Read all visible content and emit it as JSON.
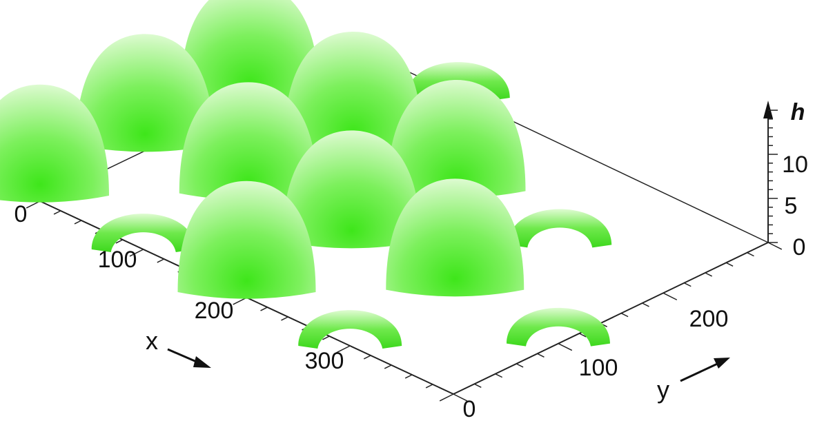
{
  "chart_data": {
    "type": "surface",
    "xlabel": "x",
    "ylabel": "y",
    "zlabel": "h",
    "x_ticks": [
      "0",
      "100",
      "200",
      "300"
    ],
    "y_ticks": [
      "0",
      "100",
      "200"
    ],
    "z_ticks": [
      "0",
      "5",
      "10"
    ],
    "xlim": [
      0,
      400
    ],
    "ylim": [
      0,
      300
    ],
    "zlim": [
      0,
      15
    ],
    "surface_color": "#44dd22",
    "domes": [
      {
        "x": 0,
        "y": 0,
        "h": 12
      },
      {
        "x": 0,
        "y": 100,
        "h": 12
      },
      {
        "x": 0,
        "y": 200,
        "h": 12
      },
      {
        "x": 100,
        "y": 0,
        "h": 6
      },
      {
        "x": 100,
        "y": 100,
        "h": 12
      },
      {
        "x": 100,
        "y": 200,
        "h": 12
      },
      {
        "x": 100,
        "y": 300,
        "h": 6
      },
      {
        "x": 200,
        "y": 0,
        "h": 12
      },
      {
        "x": 200,
        "y": 100,
        "h": 12
      },
      {
        "x": 200,
        "y": 200,
        "h": 12
      },
      {
        "x": 300,
        "y": 0,
        "h": 6
      },
      {
        "x": 300,
        "y": 100,
        "h": 12
      },
      {
        "x": 300,
        "y": 200,
        "h": 6
      },
      {
        "x": 400,
        "y": 100,
        "h": 6
      }
    ]
  }
}
